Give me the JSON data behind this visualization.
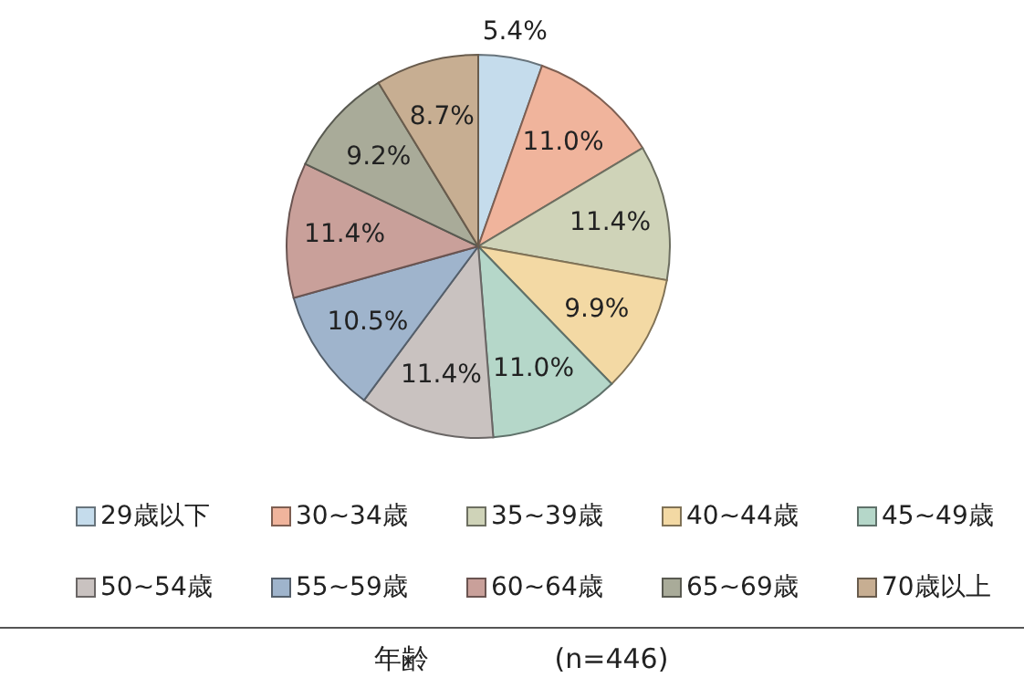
{
  "chart_data": {
    "type": "pie",
    "title": "年齢",
    "subtitle": "(n=446)",
    "categories": [
      "29歳以下",
      "30~34歳",
      "35~39歳",
      "40~44歳",
      "45~49歳",
      "50~54歳",
      "55~59歳",
      "60~64歳",
      "65~69歳",
      "70歳以上"
    ],
    "values": [
      5.4,
      11.0,
      11.4,
      9.9,
      11.0,
      11.4,
      10.5,
      11.4,
      9.2,
      8.7
    ],
    "value_labels": [
      "5.4%",
      "11.0%",
      "11.4%",
      "9.9%",
      "11.0%",
      "11.4%",
      "10.5%",
      "11.4%",
      "9.2%",
      "8.7%"
    ],
    "colors": [
      "#c5dcec",
      "#f0b49c",
      "#cfd3b8",
      "#f3d9a4",
      "#b5d7c9",
      "#c9c2c0",
      "#9fb4cc",
      "#c9a09a",
      "#a9ab99",
      "#c7ae92"
    ],
    "legend": "bottom"
  }
}
